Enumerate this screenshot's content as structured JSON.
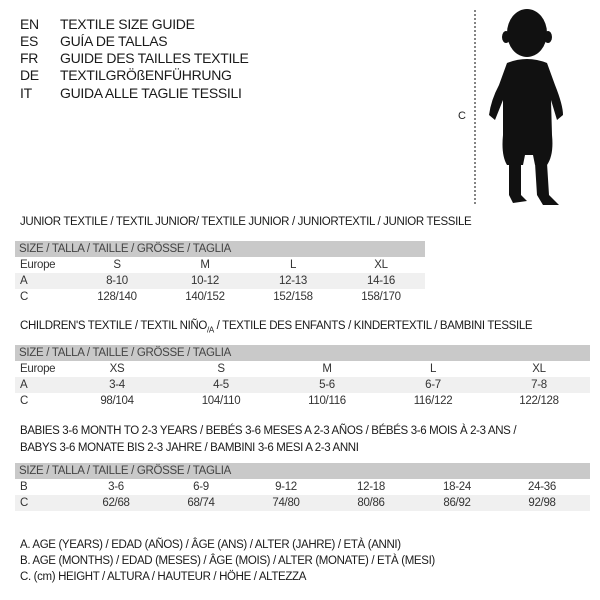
{
  "header": [
    {
      "code": "EN",
      "text": "TEXTILE SIZE GUIDE"
    },
    {
      "code": "ES",
      "text": "GUÍA DE TALLAS"
    },
    {
      "code": "FR",
      "text": "GUIDE DES TAILLES TEXTILE"
    },
    {
      "code": "DE",
      "text": "TEXTILGRÖßENFÜHRUNG"
    },
    {
      "code": "IT",
      "text": "GUIDA ALLE TAGLIE TESSILI"
    }
  ],
  "figure": {
    "label": "C",
    "icon": "child-silhouette"
  },
  "junior": {
    "title": "JUNIOR TEXTILE / TEXTIL JUNIOR/ TEXTILE JUNIOR / JUNIORTEXTIL / JUNIOR TESSILE",
    "size_header": "SIZE / TALLA / TAILLE / GRÖSSE / TAGLIA",
    "rows": [
      {
        "label": "Europe",
        "cells": [
          "S",
          "M",
          "L",
          "XL"
        ]
      },
      {
        "label": "A",
        "cells": [
          "8-10",
          "10-12",
          "12-13",
          "14-16"
        ]
      },
      {
        "label": "C",
        "cells": [
          "128/140",
          "140/152",
          "152/158",
          "158/170"
        ]
      }
    ]
  },
  "children": {
    "title_main": "CHILDREN'S TEXTILE / TEXTIL NIÑO",
    "title_sub": "/A",
    "title_rest": " / TEXTILE DES ENFANTS / KINDERTEXTIL / BAMBINI TESSILE",
    "size_header": "SIZE / TALLA / TAILLE / GRÖSSE / TAGLIA",
    "rows": [
      {
        "label": "Europe",
        "cells": [
          "XS",
          "S",
          "M",
          "L",
          "XL"
        ]
      },
      {
        "label": "A",
        "cells": [
          "3-4",
          "4-5",
          "5-6",
          "6-7",
          "7-8"
        ]
      },
      {
        "label": "C",
        "cells": [
          "98/104",
          "104/110",
          "110/116",
          "116/122",
          "122/128"
        ]
      }
    ]
  },
  "babies": {
    "title_line1": "BABIES 3-6 MONTH TO 2-3 YEARS / BEBÉS 3-6 MESES A 2-3 AÑOS / BÉBÉS 3-6 MOIS À 2-3 ANS /",
    "title_line2": "BABYS 3-6 MONATE BIS 2-3 JAHRE / BAMBINI 3-6 MESI A 2-3 ANNI",
    "size_header": "SIZE / TALLA / TAILLE / GRÖSSE / TAGLIA",
    "rows": [
      {
        "label": "B",
        "cells": [
          "3-6",
          "6-9",
          "9-12",
          "12-18",
          "18-24",
          "24-36"
        ]
      },
      {
        "label": "C",
        "cells": [
          "62/68",
          "68/74",
          "74/80",
          "80/86",
          "86/92",
          "92/98"
        ]
      }
    ]
  },
  "legend": [
    "A. AGE (YEARS) / EDAD (AÑOS) / ÂGE (ANS) / ALTER (JAHRE) / ETÀ (ANNI)",
    "B. AGE (MONTHS) / EDAD (MESES) / ÂGE (MOIS) / ALTER (MONATE) / ETÀ (MESI)",
    "C. (cm) HEIGHT / ALTURA / HAUTEUR / HÖHE / ALTEZZA"
  ]
}
